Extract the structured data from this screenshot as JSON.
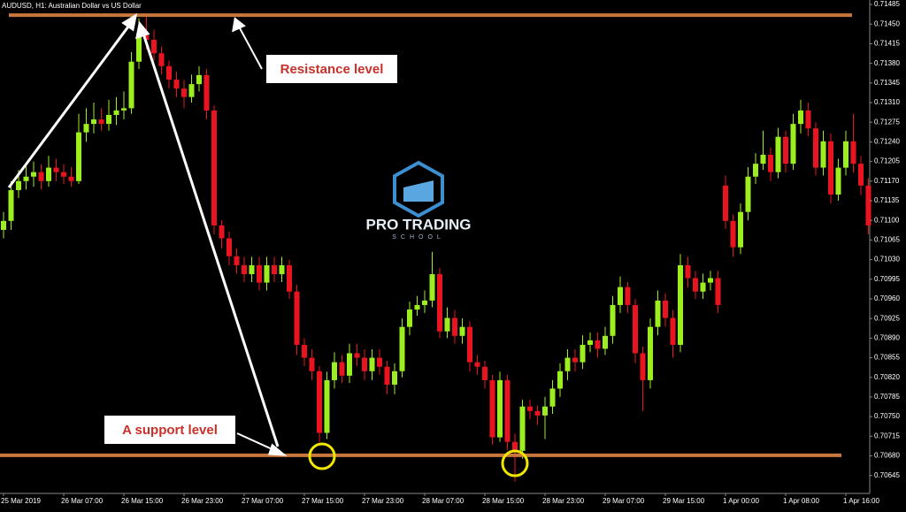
{
  "chart_data": {
    "type": "candlestick",
    "title": "AUDUSD, H1:  Australian Dollar vs US Dollar",
    "up_color": "#9cee1e",
    "down_color": "#ea1420",
    "level_color": "#c9773c",
    "ylim": [
      0.70613,
      0.71493
    ],
    "yticks": [
      0.71485,
      {
        "value": 0.7145,
        "label": "0.71450"
      },
      0.71415,
      {
        "value": 0.7138,
        "label": "0.71380"
      },
      0.71345,
      {
        "value": 0.7131,
        "label": "0.71310"
      },
      0.71275,
      {
        "value": 0.7124,
        "label": "0.71240"
      },
      0.71205,
      {
        "value": 0.7117,
        "label": "0.71170"
      },
      0.71135,
      {
        "value": 0.711,
        "label": "0.71100"
      },
      0.71065,
      {
        "value": 0.7103,
        "label": "0.71030"
      },
      0.70995,
      {
        "value": 0.7096,
        "label": "0.70960"
      },
      0.70925,
      {
        "value": 0.7089,
        "label": "0.70890"
      },
      0.70855,
      {
        "value": 0.7082,
        "label": "0.70820"
      },
      0.70785,
      {
        "value": 0.7075,
        "label": "0.70750"
      },
      0.70715,
      {
        "value": 0.7068,
        "label": "0.70680"
      },
      0.70645
    ],
    "categories": [
      "25 Mar 2019",
      null,
      null,
      null,
      null,
      null,
      null,
      null,
      "26 Mar 07:00",
      null,
      null,
      null,
      null,
      null,
      null,
      null,
      "26 Mar 15:00",
      null,
      null,
      null,
      null,
      null,
      null,
      null,
      "26 Mar 23:00",
      null,
      null,
      null,
      null,
      null,
      null,
      null,
      "27 Mar 07:00",
      null,
      null,
      null,
      null,
      null,
      null,
      null,
      "27 Mar 15:00",
      null,
      null,
      null,
      null,
      null,
      null,
      null,
      "27 Mar 23:00",
      null,
      null,
      null,
      null,
      null,
      null,
      null,
      "28 Mar 07:00",
      null,
      null,
      null,
      null,
      null,
      null,
      null,
      "28 Mar 15:00",
      null,
      null,
      null,
      null,
      null,
      null,
      null,
      "28 Mar 23:00",
      null,
      null,
      null,
      null,
      null,
      null,
      null,
      "29 Mar 07:00",
      null,
      null,
      null,
      null,
      null,
      null,
      null,
      "29 Mar 15:00",
      null,
      null,
      null,
      null,
      null,
      null,
      null,
      "1 Apr 00:00",
      null,
      null,
      null,
      null,
      null,
      null,
      null,
      "1 Apr 08:00",
      null,
      null,
      null,
      null,
      null,
      null,
      null,
      "1 Apr 16:00",
      null,
      null,
      null
    ],
    "open": [
      0.71083,
      0.71099,
      0.71154,
      0.7117,
      0.71178,
      0.71186,
      0.7117,
      0.71194,
      0.71186,
      0.71178,
      0.7117,
      0.71257,
      0.71272,
      0.7128,
      0.71272,
      0.71288,
      0.71296,
      0.713,
      0.71383,
      0.7143,
      0.71422,
      0.71398,
      0.71375,
      0.71351,
      0.71335,
      0.7132,
      0.71343,
      0.71359,
      0.71296,
      0.71091,
      0.71068,
      0.71036,
      0.7102,
      0.71004,
      0.7102,
      0.70989,
      0.7102,
      0.71004,
      0.7102,
      0.70973,
      0.70878,
      0.70855,
      0.70831,
      0.70721,
      0.70815,
      0.70847,
      0.70823,
      0.70863,
      0.70855,
      0.70831,
      0.70855,
      0.70839,
      0.70807,
      0.70831,
      0.7091,
      0.70941,
      0.70949,
      0.70957,
      0.71004,
      0.70902,
      0.70926,
      0.70894,
      0.7091,
      0.70847,
      0.70839,
      0.70815,
      0.70713,
      0.70815,
      0.70705,
      0.70689,
      0.70768,
      0.7076,
      0.70752,
      0.70768,
      0.708,
      0.70831,
      0.70855,
      0.70847,
      0.70878,
      0.70886,
      0.70871,
      0.70894,
      0.70949,
      0.70981,
      0.70949,
      0.70863,
      0.70815,
      0.7091,
      0.70957,
      0.70926,
      0.70878,
      0.7102,
      0.70997,
      0.70973,
      0.70989,
      0.70997,
      0.71162,
      0.71099,
      0.71052,
      0.71115,
      0.71178,
      0.71201,
      0.71217,
      0.71186,
      0.71249,
      0.71201,
      0.71272,
      0.71296,
      0.71264,
      0.71194,
      0.71241,
      0.71146,
      0.71194,
      0.71241,
      0.71201,
      0.71162
    ],
    "high": [
      0.71115,
      0.7117,
      0.7119,
      0.712,
      0.71205,
      0.712,
      0.71215,
      0.7121,
      0.712,
      0.71195,
      0.7129,
      0.713,
      0.7131,
      0.713,
      0.71315,
      0.7132,
      0.7133,
      0.714,
      0.7146,
      0.71469,
      0.7144,
      0.7141,
      0.71385,
      0.71365,
      0.7135,
      0.7136,
      0.71375,
      0.7137,
      0.71305,
      0.711,
      0.7108,
      0.7105,
      0.71035,
      0.71035,
      0.71035,
      0.71035,
      0.71035,
      0.71035,
      0.7103,
      0.70985,
      0.7089,
      0.7087,
      0.7084,
      0.7083,
      0.70865,
      0.7086,
      0.7088,
      0.7088,
      0.7087,
      0.7087,
      0.7087,
      0.7085,
      0.70845,
      0.70925,
      0.70955,
      0.70965,
      0.70975,
      0.71044,
      0.71015,
      0.70945,
      0.7094,
      0.70925,
      0.7092,
      0.7086,
      0.7085,
      0.70825,
      0.7083,
      0.70825,
      0.7072,
      0.7078,
      0.7078,
      0.7077,
      0.70785,
      0.70815,
      0.70845,
      0.7087,
      0.7087,
      0.70895,
      0.709,
      0.709,
      0.7091,
      0.70965,
      0.71,
      0.7099,
      0.7096,
      0.70875,
      0.70925,
      0.70975,
      0.7097,
      0.7094,
      0.7104,
      0.71035,
      0.7101,
      0.71005,
      0.7101,
      0.7101,
      0.7118,
      0.7111,
      0.7113,
      0.71195,
      0.7122,
      0.7126,
      0.7123,
      0.71265,
      0.7126,
      0.7129,
      0.71315,
      0.7131,
      0.71275,
      0.7126,
      0.71255,
      0.7121,
      0.7126,
      0.7129,
      0.71215,
      0.71175
    ],
    "low": [
      0.71068,
      0.71083,
      0.7114,
      0.71155,
      0.7116,
      0.71155,
      0.7116,
      0.7117,
      0.71165,
      0.7116,
      0.71165,
      0.7124,
      0.71255,
      0.7126,
      0.7126,
      0.7127,
      0.7128,
      0.7129,
      0.7137,
      0.71405,
      0.71385,
      0.7136,
      0.71335,
      0.7132,
      0.713,
      0.7131,
      0.7133,
      0.7128,
      0.71075,
      0.7105,
      0.7102,
      0.71005,
      0.7099,
      0.7099,
      0.70975,
      0.70975,
      0.7099,
      0.7099,
      0.7096,
      0.7086,
      0.7084,
      0.70815,
      0.70705,
      0.7071,
      0.708,
      0.7081,
      0.7081,
      0.7084,
      0.70815,
      0.70815,
      0.70825,
      0.7079,
      0.7079,
      0.7082,
      0.70895,
      0.7093,
      0.70935,
      0.70945,
      0.7089,
      0.7089,
      0.7088,
      0.7088,
      0.7083,
      0.70825,
      0.708,
      0.707,
      0.70705,
      0.7069,
      0.70634,
      0.70675,
      0.70745,
      0.70735,
      0.7071,
      0.70755,
      0.70785,
      0.70815,
      0.7083,
      0.70835,
      0.70865,
      0.70855,
      0.7086,
      0.7088,
      0.70935,
      0.70935,
      0.70845,
      0.7076,
      0.708,
      0.70895,
      0.7091,
      0.70855,
      0.70865,
      0.7098,
      0.7096,
      0.7096,
      0.70975,
      0.70935,
      0.71085,
      0.71035,
      0.7104,
      0.711,
      0.71165,
      0.7119,
      0.7117,
      0.71175,
      0.71185,
      0.7119,
      0.71255,
      0.7125,
      0.7118,
      0.7118,
      0.7113,
      0.71135,
      0.7118,
      0.71185,
      0.71145,
      0.71075
    ],
    "close": [
      0.71099,
      0.71154,
      0.7117,
      0.71178,
      0.71186,
      0.7117,
      0.71194,
      0.71186,
      0.71178,
      0.7117,
      0.71257,
      0.71272,
      0.7128,
      0.71272,
      0.71288,
      0.71296,
      0.713,
      0.71383,
      0.7143,
      0.71422,
      0.71398,
      0.71375,
      0.71351,
      0.71335,
      0.7132,
      0.71343,
      0.71359,
      0.71296,
      0.71091,
      0.71068,
      0.71036,
      0.7102,
      0.71004,
      0.7102,
      0.70989,
      0.7102,
      0.71004,
      0.7102,
      0.70973,
      0.70878,
      0.70855,
      0.70831,
      0.70721,
      0.70815,
      0.70847,
      0.70823,
      0.70863,
      0.70855,
      0.70831,
      0.70855,
      0.70839,
      0.70807,
      0.70831,
      0.7091,
      0.70941,
      0.70949,
      0.70957,
      0.71004,
      0.70902,
      0.70926,
      0.70894,
      0.7091,
      0.70847,
      0.70839,
      0.70815,
      0.70713,
      0.70815,
      0.70705,
      0.70689,
      0.70768,
      0.7076,
      0.70752,
      0.70768,
      0.708,
      0.70831,
      0.70855,
      0.70847,
      0.70878,
      0.70886,
      0.70871,
      0.70894,
      0.70949,
      0.70981,
      0.70949,
      0.70863,
      0.70815,
      0.7091,
      0.70957,
      0.70926,
      0.70878,
      0.7102,
      0.70997,
      0.70973,
      0.70989,
      0.70997,
      0.70949,
      0.71099,
      0.71052,
      0.71115,
      0.71178,
      0.71201,
      0.71217,
      0.71186,
      0.71249,
      0.71201,
      0.71272,
      0.71296,
      0.71264,
      0.71194,
      0.71241,
      0.71146,
      0.71194,
      0.71241,
      0.71201,
      0.71162,
      0.71091
    ],
    "resistance": 0.71466,
    "support": 0.70681,
    "annotations": [
      "Resistance level",
      "A support level"
    ],
    "logo": {
      "title": "PRO TRADING",
      "subtitle": "SCHOOL"
    }
  }
}
